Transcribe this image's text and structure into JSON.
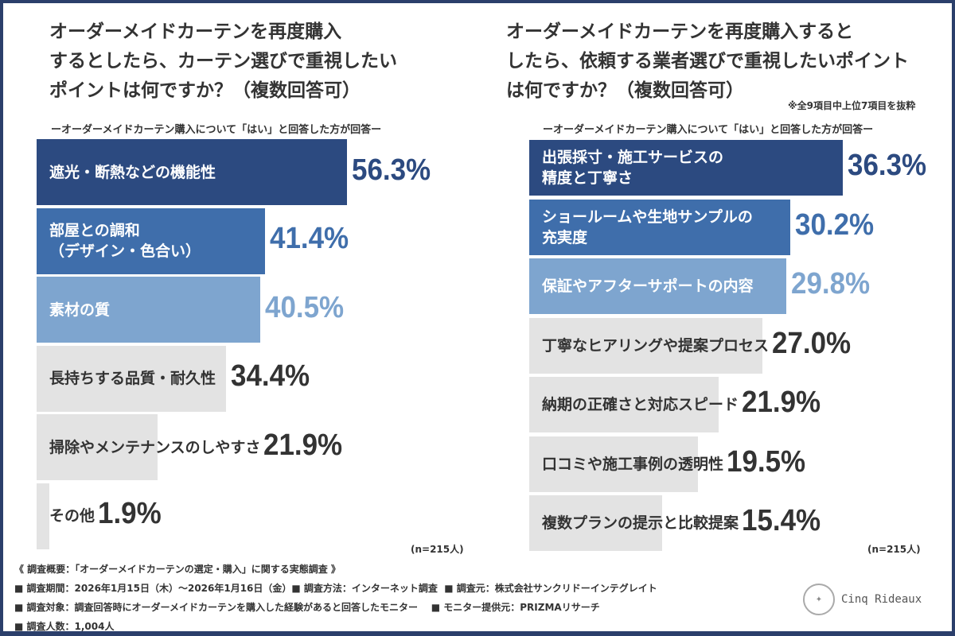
{
  "chart_data": [
    {
      "type": "bar",
      "orientation": "horizontal",
      "title": "オーダーメイドカーテンを再度購入\nするとしたら、カーテン選びで重視したい\nポイントは何ですか？（複数回答可）",
      "subtitle": "ーオーダーメイドカーテン購入について「はい」と回答した方が回答ー",
      "categories": [
        "遮光・断熱などの機能性",
        "部屋との調和\n（デザイン・色合い）",
        "素材の質",
        "長持ちする品質・耐久性",
        "掃除やメンテナンスのしやすさ",
        "その他"
      ],
      "values": [
        56.3,
        41.4,
        40.5,
        34.4,
        21.9,
        1.9
      ],
      "labels": [
        "56.3%",
        "41.4%",
        "40.5%",
        "34.4%",
        "21.9%",
        "1.9%"
      ],
      "unit": "%",
      "sample": "(n=215人)",
      "grid": false
    },
    {
      "type": "bar",
      "orientation": "horizontal",
      "title": "オーダーメイドカーテンを再度購入すると\nしたら、依頼する業者選びで重視したいポイント\nは何ですか？（複数回答可）",
      "note": "※全9項目中上位7項目を抜粋",
      "subtitle": "ーオーダーメイドカーテン購入について「はい」と回答した方が回答ー",
      "categories": [
        "出張採寸・施工サービスの\n精度と丁寧さ",
        "ショールームや生地サンプルの\n充実度",
        "保証やアフターサポートの内容",
        "丁寧なヒアリングや提案プロセス",
        "納期の正確さと対応スピード",
        "口コミや施工事例の透明性",
        "複数プランの提示と比較提案"
      ],
      "values": [
        36.3,
        30.2,
        29.8,
        27.0,
        21.9,
        19.5,
        15.4
      ],
      "labels": [
        "36.3%",
        "30.2%",
        "29.8%",
        "27.0%",
        "21.9%",
        "19.5%",
        "15.4%"
      ],
      "unit": "%",
      "sample": "(n=215人)",
      "grid": false
    }
  ],
  "colors": {
    "rank1": "#2c4a80",
    "rank2": "#3f6eab",
    "rank3": "#7ea5cf",
    "other": "#e3e3e3",
    "frame": "#2b3f6b"
  },
  "footer": {
    "lines": [
      "《 調査概要：「オーダーメイドカーテンの選定・購入」に関する実態調査 》",
      "■ 調査期間：2026年1月15日（木）～2026年1月16日（金）■ 調査方法：インターネット調査  ■ 調査元：株式会社サンクリドーインテグレイト",
      "■ 調査対象：調査回答時にオーダーメイドカーテンを購入した経験があると回答したモニター    ■ モニター提供元：PRIZMAリサーチ",
      "■ 調査人数：1,004人"
    ]
  },
  "logo": {
    "text": "Cinq Rideaux"
  }
}
